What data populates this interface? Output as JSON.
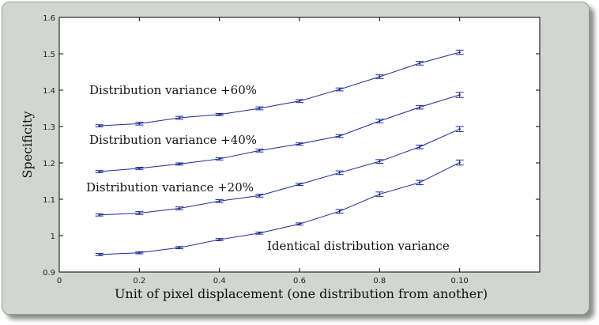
{
  "chart_data": {
    "type": "line",
    "xlabel": "Unit of pixel displacement (one distribution from another)",
    "ylabel": "Specificity",
    "xlim": [
      0,
      0.12
    ],
    "ylim": [
      0.9,
      1.6
    ],
    "xticks": [
      {
        "value": 0,
        "label": "0"
      },
      {
        "value": 0.02,
        "label": "0.2"
      },
      {
        "value": 0.04,
        "label": "0.4"
      },
      {
        "value": 0.06,
        "label": "0.6"
      },
      {
        "value": 0.08,
        "label": "0.8"
      },
      {
        "value": 0.1,
        "label": "0.10"
      }
    ],
    "yticks": [
      {
        "value": 0.9,
        "label": "0.9"
      },
      {
        "value": 1.0,
        "label": "1"
      },
      {
        "value": 1.1,
        "label": "1.1"
      },
      {
        "value": 1.2,
        "label": "1.2"
      },
      {
        "value": 1.3,
        "label": "1.3"
      },
      {
        "value": 1.4,
        "label": "1.4"
      },
      {
        "value": 1.5,
        "label": "1.5"
      },
      {
        "value": 1.6,
        "label": "1.6"
      }
    ],
    "x": [
      0.01,
      0.02,
      0.03,
      0.04,
      0.05,
      0.06,
      0.07,
      0.08,
      0.09,
      0.1
    ],
    "series": [
      {
        "values": [
          1.302,
          1.308,
          1.324,
          1.333,
          1.35,
          1.37,
          1.402,
          1.437,
          1.474,
          1.504
        ],
        "errors": [
          0.003,
          0.004,
          0.004,
          0.003,
          0.004,
          0.004,
          0.004,
          0.005,
          0.005,
          0.006
        ]
      },
      {
        "values": [
          1.176,
          1.185,
          1.197,
          1.211,
          1.234,
          1.252,
          1.274,
          1.315,
          1.353,
          1.387
        ],
        "errors": [
          0.003,
          0.003,
          0.003,
          0.003,
          0.004,
          0.003,
          0.004,
          0.005,
          0.005,
          0.007
        ]
      },
      {
        "values": [
          1.057,
          1.062,
          1.075,
          1.095,
          1.11,
          1.141,
          1.173,
          1.204,
          1.244,
          1.293
        ],
        "errors": [
          0.003,
          0.004,
          0.004,
          0.004,
          0.004,
          0.003,
          0.005,
          0.005,
          0.005,
          0.007
        ]
      },
      {
        "values": [
          0.948,
          0.953,
          0.967,
          0.989,
          1.007,
          1.032,
          1.067,
          1.114,
          1.146,
          1.201
        ],
        "errors": [
          0.003,
          0.003,
          0.003,
          0.003,
          0.003,
          0.003,
          0.005,
          0.006,
          0.006,
          0.007
        ]
      }
    ],
    "annotations": [
      {
        "text": "Distribution variance +60%"
      },
      {
        "text": "Distribution variance +40%"
      },
      {
        "text": "Distribution variance +20%"
      },
      {
        "text": "Identical distribution variance"
      }
    ],
    "grid": false,
    "colors": {
      "line": "#1a2a9a",
      "axis": "#000000",
      "plot_bg": "#ffffff",
      "frame_bg": "#d2d6d0"
    }
  }
}
